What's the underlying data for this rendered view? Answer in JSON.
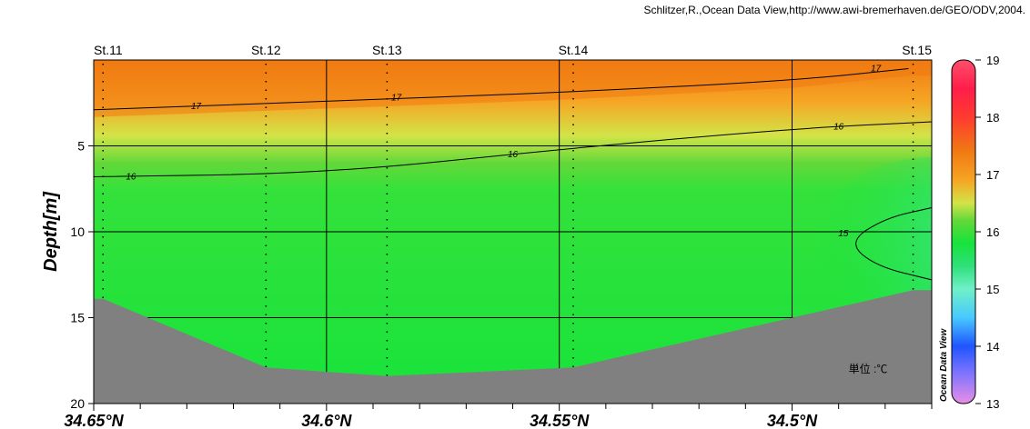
{
  "credit": "Schlitzer,R.,Ocean Data View,http://www.awi-bremerhaven.de/GEO/ODV,2004.",
  "chart_data": {
    "type": "heatmap",
    "variable": "temperature",
    "unit_label": "単位 :℃",
    "ylabel": "Depth[m]",
    "ylim": [
      0,
      20
    ],
    "y_reversed": true,
    "yticks": [
      5,
      10,
      15,
      20
    ],
    "xlim": [
      34.65,
      34.47
    ],
    "x_reversed": true,
    "xticks": [
      34.65,
      34.6,
      34.55,
      34.5
    ],
    "xtick_labels": [
      "34.65°N",
      "34.6°N",
      "34.55°N",
      "34.5°N"
    ],
    "stations": [
      {
        "name": "St.11",
        "lat": 34.648,
        "bottom_depth": 13.9
      },
      {
        "name": "St.12",
        "lat": 34.613,
        "bottom_depth": 17.9
      },
      {
        "name": "St.13",
        "lat": 34.587,
        "bottom_depth": 18.4
      },
      {
        "name": "St.14",
        "lat": 34.547,
        "bottom_depth": 17.9
      },
      {
        "name": "St.15",
        "lat": 34.474,
        "bottom_depth": 13.4
      }
    ],
    "contours": [
      {
        "level": 17,
        "points": [
          [
            34.65,
            2.9
          ],
          [
            34.6,
            2.4
          ],
          [
            34.55,
            1.9
          ],
          [
            34.5,
            1.2
          ],
          [
            34.475,
            0.5
          ]
        ],
        "labels": [
          [
            34.628,
            2.7
          ],
          [
            34.585,
            2.2
          ],
          [
            34.482,
            0.5
          ]
        ]
      },
      {
        "level": 16,
        "points": [
          [
            34.65,
            6.8
          ],
          [
            34.6,
            6.6
          ],
          [
            34.55,
            5.2
          ],
          [
            34.5,
            4.0
          ],
          [
            34.47,
            3.6
          ]
        ],
        "labels": [
          [
            34.642,
            6.8
          ],
          [
            34.56,
            5.5
          ],
          [
            34.49,
            3.9
          ]
        ]
      },
      {
        "level": 15,
        "points": [
          [
            34.47,
            8.6
          ],
          [
            34.48,
            9.2
          ],
          [
            34.488,
            10.6
          ],
          [
            34.482,
            12.0
          ],
          [
            34.47,
            12.8
          ]
        ],
        "labels": [
          [
            34.489,
            10.1
          ]
        ]
      }
    ],
    "colorbar": {
      "min": 13,
      "max": 19,
      "ticks": [
        13,
        14,
        15,
        16,
        17,
        18,
        19
      ],
      "colors": [
        {
          "value": 13,
          "color": "#e98ee6"
        },
        {
          "value": 13.6,
          "color": "#7070ff"
        },
        {
          "value": 14,
          "color": "#1f55ff"
        },
        {
          "value": 14.5,
          "color": "#47c9ff"
        },
        {
          "value": 15,
          "color": "#6ff0c8"
        },
        {
          "value": 15.4,
          "color": "#2fe07a"
        },
        {
          "value": 15.8,
          "color": "#17e33b"
        },
        {
          "value": 16.2,
          "color": "#63d83a"
        },
        {
          "value": 16.5,
          "color": "#d2e447"
        },
        {
          "value": 16.9,
          "color": "#f6a524"
        },
        {
          "value": 17.4,
          "color": "#f07a12"
        },
        {
          "value": 18,
          "color": "#ff3b2f"
        },
        {
          "value": 18.5,
          "color": "#ff1d4a"
        },
        {
          "value": 19,
          "color": "#ff4f6c"
        }
      ],
      "label": "Ocean Data View"
    },
    "grid": true,
    "bottom_color": "#808080"
  }
}
